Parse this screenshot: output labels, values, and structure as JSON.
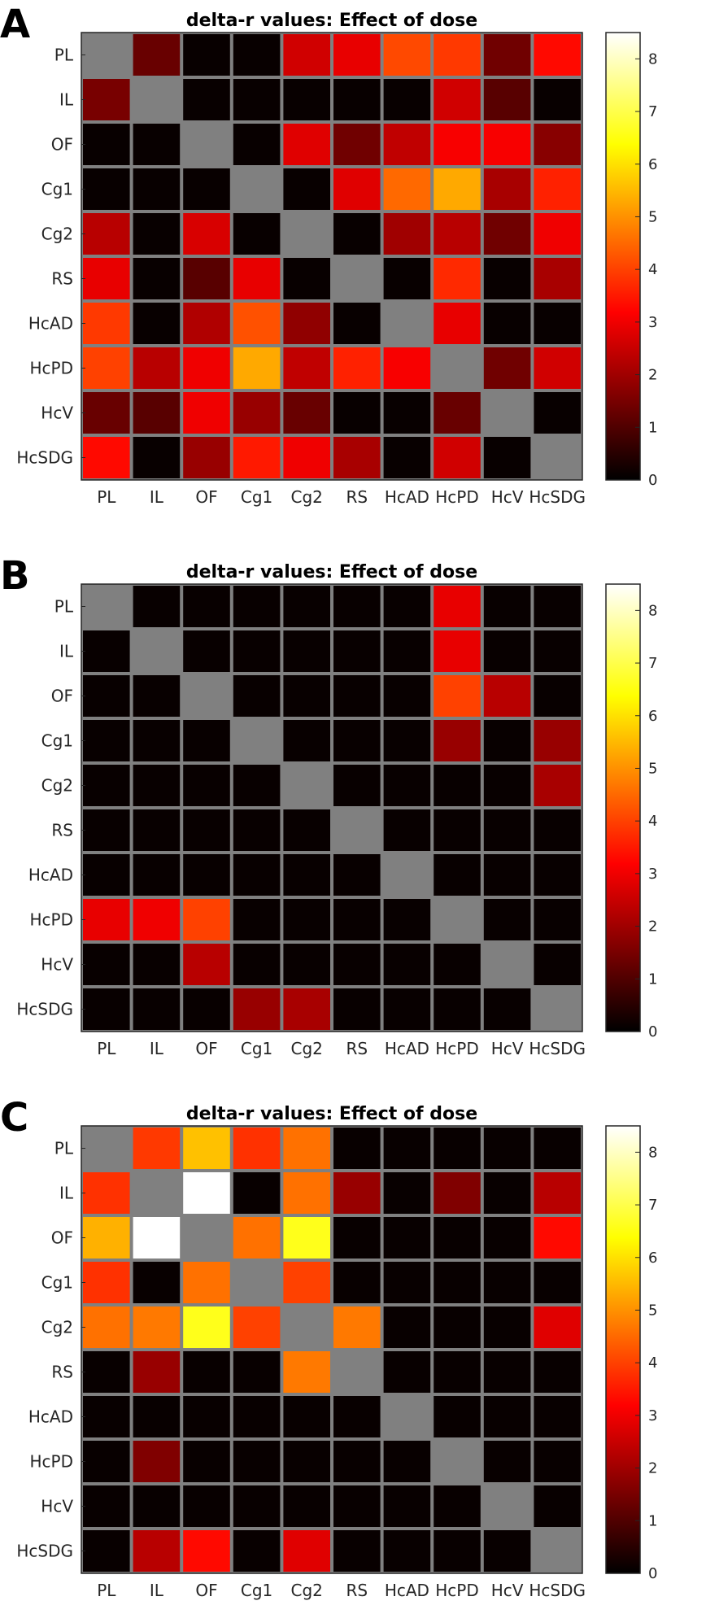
{
  "colormap": {
    "name": "hot",
    "stops": [
      "#000000",
      "#ff0000",
      "#ffff00",
      "#ffffff"
    ],
    "diagonal_color": "#808080",
    "grid_color": "#808080"
  },
  "chart_data": [
    {
      "panel": "A",
      "type": "heatmap",
      "title": "delta-r values: Effect of dose",
      "row_labels": [
        "PL",
        "IL",
        "OF",
        "Cg1",
        "Cg2",
        "RS",
        "HcAD",
        "HcPD",
        "HcV",
        "HcSDG"
      ],
      "col_labels": [
        "PL",
        "IL",
        "OF",
        "Cg1",
        "Cg2",
        "RS",
        "HcAD",
        "HcPD",
        "HcV",
        "HcSDG"
      ],
      "clim": [
        0,
        8.5
      ],
      "colorbar_ticks": [
        0,
        1,
        2,
        3,
        4,
        5,
        6,
        7,
        8
      ],
      "values": [
        [
          null,
          1.3,
          0.1,
          0.1,
          2.6,
          2.9,
          4.1,
          3.9,
          1.4,
          3.3
        ],
        [
          1.5,
          null,
          0.1,
          0.1,
          0.1,
          0.1,
          0.1,
          2.6,
          1.1,
          0.1
        ],
        [
          0.1,
          0.1,
          null,
          0.1,
          2.8,
          1.4,
          2.4,
          3.1,
          3.1,
          1.7
        ],
        [
          0.1,
          0.1,
          0.1,
          null,
          0.1,
          2.8,
          4.5,
          5.3,
          2.1,
          3.6
        ],
        [
          2.3,
          0.1,
          2.7,
          0.1,
          null,
          0.1,
          2.0,
          2.3,
          1.4,
          3.0
        ],
        [
          2.9,
          0.1,
          1.1,
          2.9,
          0.1,
          null,
          0.1,
          3.7,
          0.1,
          2.1
        ],
        [
          3.9,
          0.1,
          2.2,
          4.2,
          1.8,
          0.1,
          null,
          2.9,
          0.1,
          0.1
        ],
        [
          4.0,
          2.3,
          3.0,
          5.3,
          2.4,
          3.6,
          3.1,
          null,
          1.4,
          2.6
        ],
        [
          1.3,
          1.1,
          3.0,
          1.9,
          1.3,
          0.1,
          0.1,
          1.3,
          null,
          0.1
        ],
        [
          3.3,
          0.1,
          1.9,
          3.5,
          3.0,
          2.1,
          0.1,
          2.6,
          0.1,
          null
        ]
      ]
    },
    {
      "panel": "B",
      "type": "heatmap",
      "title": "delta-r values: Effect of dose",
      "row_labels": [
        "PL",
        "IL",
        "OF",
        "Cg1",
        "Cg2",
        "RS",
        "HcAD",
        "HcPD",
        "HcV",
        "HcSDG"
      ],
      "col_labels": [
        "PL",
        "IL",
        "OF",
        "Cg1",
        "Cg2",
        "RS",
        "HcAD",
        "HcPD",
        "HcV",
        "HcSDG"
      ],
      "clim": [
        0,
        8.5
      ],
      "colorbar_ticks": [
        0,
        1,
        2,
        3,
        4,
        5,
        6,
        7,
        8
      ],
      "values": [
        [
          null,
          0.1,
          0.1,
          0.1,
          0.1,
          0.1,
          0.1,
          2.9,
          0.1,
          0.1
        ],
        [
          0.1,
          null,
          0.1,
          0.1,
          0.1,
          0.1,
          0.1,
          2.9,
          0.1,
          0.1
        ],
        [
          0.1,
          0.1,
          null,
          0.1,
          0.1,
          0.1,
          0.1,
          4.0,
          2.3,
          0.1
        ],
        [
          0.1,
          0.1,
          0.1,
          null,
          0.1,
          0.1,
          0.1,
          1.9,
          0.1,
          1.9
        ],
        [
          0.1,
          0.1,
          0.1,
          0.1,
          null,
          0.1,
          0.1,
          0.1,
          0.1,
          2.1
        ],
        [
          0.1,
          0.1,
          0.1,
          0.1,
          0.1,
          null,
          0.1,
          0.1,
          0.1,
          0.1
        ],
        [
          0.1,
          0.1,
          0.1,
          0.1,
          0.1,
          0.1,
          null,
          0.1,
          0.1,
          0.1
        ],
        [
          2.9,
          3.0,
          4.0,
          0.1,
          0.1,
          0.1,
          0.1,
          null,
          0.1,
          0.1
        ],
        [
          0.1,
          0.1,
          2.3,
          0.1,
          0.1,
          0.1,
          0.1,
          0.1,
          null,
          0.1
        ],
        [
          0.1,
          0.1,
          0.1,
          1.9,
          2.1,
          0.1,
          0.1,
          0.1,
          0.1,
          null
        ]
      ]
    },
    {
      "panel": "C",
      "type": "heatmap",
      "title": "delta-r values: Effect of dose",
      "row_labels": [
        "PL",
        "IL",
        "OF",
        "Cg1",
        "Cg2",
        "RS",
        "HcAD",
        "HcPD",
        "HcV",
        "HcSDG"
      ],
      "col_labels": [
        "PL",
        "IL",
        "OF",
        "Cg1",
        "Cg2",
        "RS",
        "HcAD",
        "HcPD",
        "HcV",
        "HcSDG"
      ],
      "clim": [
        0,
        8.5
      ],
      "colorbar_ticks": [
        0,
        1,
        2,
        3,
        4,
        5,
        6,
        7,
        8
      ],
      "values": [
        [
          null,
          3.9,
          5.6,
          3.8,
          4.6,
          0.1,
          0.1,
          0.1,
          0.1,
          0.1
        ],
        [
          3.8,
          null,
          8.5,
          0.1,
          4.6,
          1.9,
          0.1,
          1.6,
          0.1,
          2.3
        ],
        [
          5.4,
          8.5,
          null,
          4.6,
          6.6,
          0.1,
          0.1,
          0.1,
          0.1,
          3.3
        ],
        [
          3.8,
          0.1,
          4.6,
          null,
          4.0,
          0.1,
          0.1,
          0.1,
          0.1,
          0.1
        ],
        [
          4.6,
          4.7,
          6.6,
          4.0,
          null,
          4.7,
          0.1,
          0.1,
          0.1,
          2.8
        ],
        [
          0.1,
          1.9,
          0.1,
          0.1,
          4.7,
          null,
          0.1,
          0.1,
          0.1,
          0.1
        ],
        [
          0.1,
          0.1,
          0.1,
          0.1,
          0.1,
          0.1,
          null,
          0.1,
          0.1,
          0.1
        ],
        [
          0.1,
          1.6,
          0.1,
          0.1,
          0.1,
          0.1,
          0.1,
          null,
          0.1,
          0.1
        ],
        [
          0.1,
          0.1,
          0.1,
          0.1,
          0.1,
          0.1,
          0.1,
          0.1,
          null,
          0.1
        ],
        [
          0.1,
          2.3,
          3.3,
          0.1,
          2.8,
          0.1,
          0.1,
          0.1,
          0.1,
          null
        ]
      ]
    }
  ]
}
